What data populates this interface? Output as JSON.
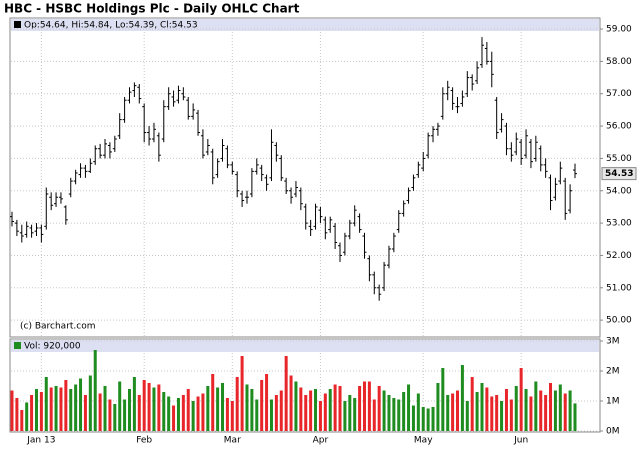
{
  "chart_data": {
    "type": "ohlc",
    "title": "HBC - HSBC Holdings Plc - Daily OHLC Chart",
    "header": "Op:54.64, Hi:54.84, Lo:54.39, Cl:54.53",
    "credit": "(c) Barchart.com",
    "volume_header": "Vol: 920,000",
    "bar_color": "#000000",
    "up_color": "#1e8c1e",
    "down_color": "#e8262a",
    "grid": true,
    "categories": [
      null,
      null,
      null,
      null,
      null,
      null,
      "Jan 13",
      null,
      null,
      null,
      null,
      null,
      null,
      null,
      null,
      null,
      null,
      null,
      null,
      null,
      null,
      null,
      null,
      null,
      null,
      null,
      null,
      "Feb",
      null,
      null,
      null,
      null,
      null,
      null,
      null,
      null,
      null,
      null,
      null,
      null,
      null,
      null,
      null,
      null,
      null,
      "Mar",
      null,
      null,
      null,
      null,
      null,
      null,
      null,
      null,
      null,
      null,
      null,
      null,
      null,
      null,
      null,
      null,
      null,
      "Apr",
      null,
      null,
      null,
      null,
      null,
      null,
      null,
      null,
      null,
      null,
      null,
      null,
      null,
      null,
      null,
      null,
      null,
      null,
      null,
      null,
      "May",
      null,
      null,
      null,
      null,
      null,
      null,
      null,
      null,
      null,
      null,
      null,
      null,
      null,
      null,
      null,
      null,
      null,
      null,
      null,
      "Jun",
      null,
      null,
      null,
      null,
      null,
      null,
      null,
      null,
      null,
      null,
      null
    ],
    "ohlc": [
      [
        53.2,
        53.35,
        52.9,
        53.05
      ],
      [
        53.0,
        53.1,
        52.6,
        52.75
      ],
      [
        52.7,
        52.95,
        52.4,
        52.6
      ],
      [
        52.65,
        53.05,
        52.55,
        52.9
      ],
      [
        52.85,
        52.95,
        52.55,
        52.7
      ],
      [
        52.75,
        53.0,
        52.6,
        52.85
      ],
      [
        52.85,
        52.95,
        52.4,
        52.65
      ],
      [
        52.9,
        54.1,
        52.8,
        53.9
      ],
      [
        53.8,
        53.95,
        53.4,
        53.55
      ],
      [
        53.6,
        53.95,
        53.5,
        53.8
      ],
      [
        53.8,
        53.95,
        53.6,
        53.75
      ],
      [
        53.5,
        53.55,
        52.95,
        53.1
      ],
      [
        53.9,
        54.4,
        53.8,
        54.3
      ],
      [
        54.3,
        54.65,
        54.2,
        54.55
      ],
      [
        54.5,
        54.85,
        54.4,
        54.7
      ],
      [
        54.7,
        54.8,
        54.4,
        54.6
      ],
      [
        54.6,
        55.0,
        54.55,
        54.85
      ],
      [
        54.9,
        55.4,
        54.8,
        55.3
      ],
      [
        55.3,
        55.45,
        55.0,
        55.1
      ],
      [
        55.1,
        55.6,
        55.0,
        55.45
      ],
      [
        55.4,
        55.5,
        55.0,
        55.2
      ],
      [
        55.3,
        55.7,
        55.2,
        55.6
      ],
      [
        55.7,
        56.4,
        55.6,
        56.2
      ],
      [
        56.2,
        56.9,
        56.1,
        56.8
      ],
      [
        56.8,
        57.2,
        56.7,
        57.05
      ],
      [
        57.1,
        57.35,
        56.9,
        57.25
      ],
      [
        57.2,
        57.3,
        56.7,
        56.85
      ],
      [
        56.6,
        56.7,
        55.5,
        55.8
      ],
      [
        55.8,
        56.0,
        55.4,
        55.6
      ],
      [
        55.6,
        56.1,
        55.5,
        55.9
      ],
      [
        55.7,
        55.8,
        54.9,
        55.1
      ],
      [
        55.6,
        56.8,
        55.5,
        56.6
      ],
      [
        56.6,
        57.2,
        56.5,
        57.0
      ],
      [
        56.9,
        57.1,
        56.6,
        56.75
      ],
      [
        56.8,
        57.25,
        56.7,
        57.1
      ],
      [
        57.0,
        57.2,
        56.8,
        56.9
      ],
      [
        56.8,
        56.9,
        56.2,
        56.3
      ],
      [
        56.3,
        56.7,
        56.2,
        56.5
      ],
      [
        56.4,
        56.5,
        55.7,
        55.8
      ],
      [
        55.7,
        55.9,
        55.0,
        55.1
      ],
      [
        55.2,
        55.6,
        55.1,
        55.4
      ],
      [
        55.2,
        55.3,
        54.2,
        54.4
      ],
      [
        54.5,
        55.0,
        54.4,
        54.9
      ],
      [
        55.0,
        55.6,
        54.9,
        55.4
      ],
      [
        55.3,
        55.4,
        54.7,
        54.8
      ],
      [
        54.8,
        54.9,
        54.5,
        54.6
      ],
      [
        54.5,
        54.6,
        53.8,
        54.0
      ],
      [
        53.9,
        54.0,
        53.5,
        53.7
      ],
      [
        53.8,
        54.0,
        53.6,
        53.8
      ],
      [
        53.9,
        54.7,
        53.8,
        54.6
      ],
      [
        54.6,
        55.0,
        54.5,
        54.8
      ],
      [
        54.7,
        54.8,
        54.3,
        54.5
      ],
      [
        54.4,
        54.5,
        54.0,
        54.2
      ],
      [
        54.4,
        55.9,
        54.3,
        55.5
      ],
      [
        55.4,
        55.5,
        54.9,
        55.1
      ],
      [
        55.0,
        55.1,
        54.3,
        54.4
      ],
      [
        54.3,
        54.4,
        53.9,
        54.0
      ],
      [
        54.0,
        54.1,
        53.6,
        53.8
      ],
      [
        53.9,
        54.3,
        53.8,
        54.1
      ],
      [
        54.0,
        54.1,
        53.4,
        53.6
      ],
      [
        53.5,
        53.6,
        52.8,
        53.0
      ],
      [
        52.9,
        53.1,
        52.6,
        52.8
      ],
      [
        52.9,
        53.6,
        52.8,
        53.5
      ],
      [
        53.4,
        53.5,
        53.0,
        53.2
      ],
      [
        53.1,
        53.2,
        52.5,
        52.7
      ],
      [
        52.8,
        53.2,
        52.7,
        53.1
      ],
      [
        52.9,
        53.0,
        52.2,
        52.4
      ],
      [
        52.3,
        52.4,
        51.8,
        52.0
      ],
      [
        52.1,
        52.7,
        52.0,
        52.6
      ],
      [
        52.6,
        53.1,
        52.5,
        53.0
      ],
      [
        53.0,
        53.55,
        52.9,
        53.4
      ],
      [
        53.2,
        53.3,
        52.7,
        52.8
      ],
      [
        52.6,
        52.7,
        51.9,
        52.1
      ],
      [
        51.9,
        52.0,
        51.2,
        51.4
      ],
      [
        51.4,
        51.5,
        50.8,
        51.0
      ],
      [
        51.0,
        51.1,
        50.6,
        50.8
      ],
      [
        51.0,
        51.8,
        50.9,
        51.7
      ],
      [
        51.7,
        52.3,
        51.6,
        52.2
      ],
      [
        52.2,
        52.7,
        52.1,
        52.6
      ],
      [
        52.8,
        53.4,
        52.7,
        53.3
      ],
      [
        53.3,
        53.7,
        53.2,
        53.6
      ],
      [
        53.7,
        54.1,
        53.6,
        54.0
      ],
      [
        54.1,
        54.5,
        54.0,
        54.4
      ],
      [
        54.5,
        54.9,
        54.4,
        54.8
      ],
      [
        54.7,
        55.2,
        54.6,
        55.0
      ],
      [
        55.1,
        55.8,
        55.0,
        55.7
      ],
      [
        55.7,
        56.0,
        55.5,
        55.9
      ],
      [
        55.9,
        56.1,
        55.7,
        56.0
      ],
      [
        56.3,
        57.2,
        56.2,
        57.0
      ],
      [
        57.0,
        57.4,
        56.8,
        57.2
      ],
      [
        57.1,
        57.2,
        56.5,
        56.7
      ],
      [
        56.6,
        56.9,
        56.4,
        56.6
      ],
      [
        56.7,
        57.1,
        56.6,
        56.9
      ],
      [
        57.0,
        57.7,
        56.9,
        57.5
      ],
      [
        57.5,
        57.6,
        57.1,
        57.3
      ],
      [
        57.4,
        58.0,
        57.3,
        57.8
      ],
      [
        57.9,
        58.75,
        57.8,
        58.5
      ],
      [
        58.4,
        58.6,
        57.9,
        58.0
      ],
      [
        58.0,
        58.3,
        57.2,
        57.6
      ],
      [
        56.8,
        56.9,
        55.6,
        55.8
      ],
      [
        55.9,
        56.4,
        55.8,
        56.2
      ],
      [
        56.0,
        56.1,
        55.1,
        55.3
      ],
      [
        55.3,
        55.5,
        54.9,
        55.1
      ],
      [
        55.2,
        55.8,
        55.1,
        55.6
      ],
      [
        55.5,
        55.6,
        54.8,
        55.0
      ],
      [
        55.1,
        55.9,
        55.0,
        55.7
      ],
      [
        55.5,
        55.6,
        54.7,
        54.9
      ],
      [
        55.0,
        55.7,
        54.9,
        55.5
      ],
      [
        55.3,
        55.4,
        54.6,
        54.8
      ],
      [
        54.8,
        55.0,
        54.4,
        54.6
      ],
      [
        54.4,
        54.5,
        53.4,
        53.7
      ],
      [
        53.8,
        54.4,
        53.7,
        54.2
      ],
      [
        54.3,
        54.9,
        54.2,
        54.7
      ],
      [
        54.3,
        54.4,
        53.1,
        53.3
      ],
      [
        53.4,
        54.2,
        53.3,
        54.0
      ],
      [
        54.64,
        54.84,
        54.39,
        54.53
      ]
    ],
    "volume": [
      1350000,
      1100000,
      700000,
      950000,
      1200000,
      1400000,
      1300000,
      1800000,
      1450000,
      1500000,
      1450000,
      1700000,
      1400000,
      1550000,
      1750000,
      1200000,
      1850000,
      2700000,
      1250000,
      1500000,
      1050000,
      900000,
      1650000,
      1050000,
      1400000,
      1800000,
      1200000,
      1700000,
      1600000,
      1450000,
      1550000,
      1300000,
      1150000,
      850000,
      1100000,
      1200000,
      1400000,
      1000000,
      1150000,
      1250000,
      1500000,
      1900000,
      1450000,
      1600000,
      1100000,
      1000000,
      1800000,
      2500000,
      1550000,
      1400000,
      1050000,
      1700000,
      1900000,
      1050000,
      1200000,
      1350000,
      2500000,
      1850000,
      1650000,
      1450000,
      1200000,
      1350000,
      1400000,
      1000000,
      1250000,
      1400000,
      1550000,
      1500000,
      1000000,
      1200000,
      1100000,
      1500000,
      1650000,
      1650000,
      1050000,
      1500000,
      1350000,
      1200000,
      1100000,
      1050000,
      1300000,
      1550000,
      850000,
      1250000,
      800000,
      750000,
      800000,
      1600000,
      2100000,
      1200000,
      1250000,
      1350000,
      2200000,
      1000000,
      1800000,
      1300000,
      1600000,
      1450000,
      1150000,
      1200000,
      1000000,
      1400000,
      1050000,
      1500000,
      2100000,
      1400000,
      1150000,
      1650000,
      1350000,
      1200000,
      1600000,
      1350000,
      1550000,
      1250000,
      1350000,
      920000
    ],
    "ylim": [
      49.54,
      59.28
    ],
    "yticks": [
      {
        "value": 50,
        "label": "50.00"
      },
      {
        "value": 51,
        "label": "51.00"
      },
      {
        "value": 52,
        "label": "52.00"
      },
      {
        "value": 53,
        "label": "53.00"
      },
      {
        "value": 54,
        "label": "54.00"
      },
      {
        "value": 55,
        "label": "55.00"
      },
      {
        "value": 56,
        "label": "56.00"
      },
      {
        "value": 57,
        "label": "57.00"
      },
      {
        "value": 58,
        "label": "58.00"
      },
      {
        "value": 59,
        "label": "59.00"
      }
    ],
    "y2lim": [
      0,
      3000000
    ],
    "y2ticks": [
      {
        "value": 0,
        "label": "0M"
      },
      {
        "value": 1000000,
        "label": "1M"
      },
      {
        "value": 2000000,
        "label": "2M"
      },
      {
        "value": 3000000,
        "label": "3M"
      }
    ]
  }
}
